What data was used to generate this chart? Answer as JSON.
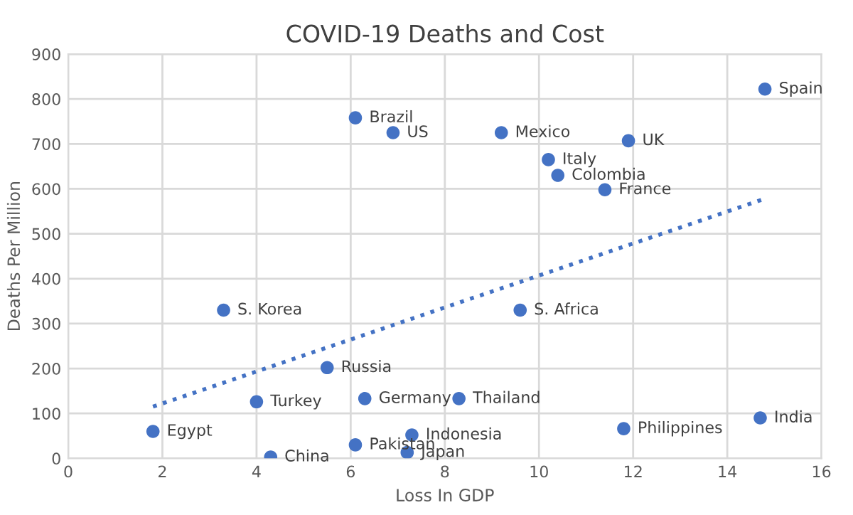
{
  "chart_data": {
    "type": "scatter",
    "title": "COVID-19 Deaths and Cost",
    "xlabel": "Loss In GDP",
    "ylabel": "Deaths Per Million",
    "xlim": [
      0,
      16
    ],
    "xticks": [
      0,
      2,
      4,
      6,
      8,
      10,
      12,
      14,
      16
    ],
    "ylim": [
      0,
      900
    ],
    "yticks": [
      0,
      100,
      200,
      300,
      400,
      500,
      600,
      700,
      800,
      900
    ],
    "grid": true,
    "marker": "circle",
    "series": [
      {
        "color": "#4472c4",
        "x": [
          6.1,
          6.9,
          9.2,
          10.2,
          10.4,
          11.9,
          11.4,
          14.8,
          3.3,
          5.5,
          4.0,
          6.3,
          8.3,
          9.6,
          1.8,
          4.3,
          6.1,
          7.3,
          7.2,
          11.8,
          14.7
        ],
        "values": [
          758,
          725,
          725,
          665,
          630,
          707,
          598,
          822,
          330,
          202,
          126,
          133,
          133,
          330,
          60,
          3,
          30,
          52,
          13,
          66,
          90
        ]
      },
      {
        "type": "line",
        "color": "#4472c4",
        "line_style": "dotted",
        "marker": "none",
        "x": [
          1.8,
          14.8
        ],
        "values": [
          115,
          578
        ]
      }
    ],
    "annotations": [
      {
        "text": "Brazil",
        "x": 6.1,
        "y": 758
      },
      {
        "text": "US",
        "x": 6.9,
        "y": 725
      },
      {
        "text": "Mexico",
        "x": 9.2,
        "y": 725
      },
      {
        "text": "Italy",
        "x": 10.2,
        "y": 665
      },
      {
        "text": "Colombia",
        "x": 10.4,
        "y": 630
      },
      {
        "text": "UK",
        "x": 11.9,
        "y": 707
      },
      {
        "text": "France",
        "x": 11.4,
        "y": 598
      },
      {
        "text": "Spain",
        "x": 14.8,
        "y": 822
      },
      {
        "text": "S. Korea",
        "x": 3.3,
        "y": 330
      },
      {
        "text": "Russia",
        "x": 5.5,
        "y": 202
      },
      {
        "text": "Turkey",
        "x": 4.0,
        "y": 126
      },
      {
        "text": "Germany",
        "x": 6.3,
        "y": 133
      },
      {
        "text": "Thailand",
        "x": 8.3,
        "y": 133
      },
      {
        "text": "S. Africa",
        "x": 9.6,
        "y": 330
      },
      {
        "text": "Egypt",
        "x": 1.8,
        "y": 60
      },
      {
        "text": "China",
        "x": 4.3,
        "y": 3
      },
      {
        "text": "Pakistan",
        "x": 6.1,
        "y": 30
      },
      {
        "text": "Indonesia",
        "x": 7.3,
        "y": 52
      },
      {
        "text": "Japan",
        "x": 7.2,
        "y": 13
      },
      {
        "text": "Philippines",
        "x": 11.8,
        "y": 66
      },
      {
        "text": "India",
        "x": 14.7,
        "y": 90
      }
    ]
  }
}
